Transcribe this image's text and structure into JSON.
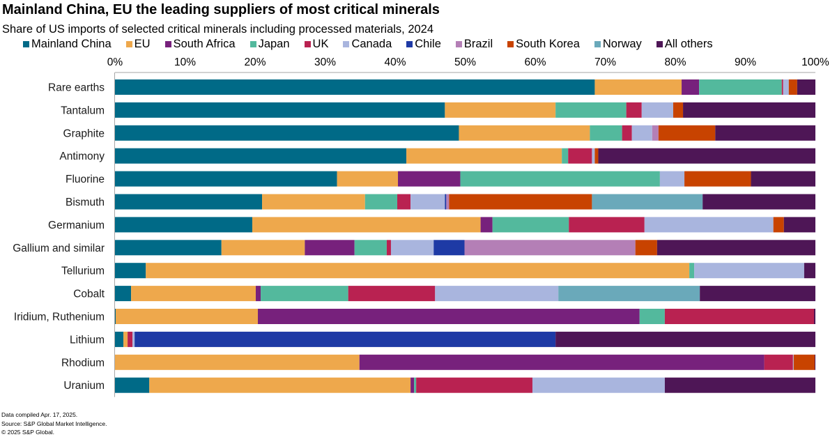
{
  "chart_data": {
    "type": "bar",
    "orientation": "horizontal",
    "stacked": true,
    "title": "Mainland China, EU the leading suppliers of most critical minerals",
    "subtitle": "Share of US imports of selected critical minerals including processed materials, 2024",
    "xlabel": "",
    "ylabel": "",
    "xlim": [
      0,
      100
    ],
    "x_ticks": [
      "0%",
      "10%",
      "20%",
      "30%",
      "40%",
      "50%",
      "60%",
      "70%",
      "80%",
      "90%",
      "100%"
    ],
    "x_axis_position": "top",
    "grid": false,
    "legend_position": "top",
    "categories": [
      "Rare earths",
      "Tantalum",
      "Graphite",
      "Antimony",
      "Fluorine",
      "Bismuth",
      "Germanium",
      "Gallium and similar",
      "Tellurium",
      "Cobalt",
      "Iridium, Ruthenium",
      "Lithium",
      "Rhodium",
      "Uranium"
    ],
    "series": [
      {
        "name": "Mainland China",
        "color": "#006a87",
        "values": [
          68.5,
          47.1,
          49.1,
          41.6,
          31.7,
          21.0,
          19.6,
          15.2,
          4.4,
          2.3,
          0.1,
          1.2,
          0.0,
          4.9
        ]
      },
      {
        "name": "EU",
        "color": "#eea84c",
        "values": [
          12.4,
          15.8,
          18.7,
          22.2,
          8.7,
          14.7,
          32.6,
          11.9,
          77.6,
          17.8,
          20.3,
          0.6,
          34.9,
          37.3
        ]
      },
      {
        "name": "South Africa",
        "color": "#77217c",
        "values": [
          2.5,
          0.0,
          0.0,
          0.0,
          8.9,
          0.0,
          1.7,
          7.1,
          0.0,
          0.7,
          54.5,
          0.0,
          57.8,
          0.5
        ]
      },
      {
        "name": "Japan",
        "color": "#53b99d",
        "values": [
          11.8,
          10.1,
          4.6,
          0.9,
          28.5,
          4.6,
          10.9,
          4.6,
          0.7,
          12.5,
          3.6,
          0.0,
          0.0,
          0.3
        ]
      },
      {
        "name": "UK",
        "color": "#b92251",
        "values": [
          0.2,
          2.2,
          1.4,
          3.4,
          0.0,
          1.9,
          10.8,
          0.6,
          0.0,
          12.4,
          21.3,
          0.7,
          4.1,
          16.6
        ]
      },
      {
        "name": "Canada",
        "color": "#a9b5de",
        "values": [
          0.8,
          4.5,
          2.9,
          0.4,
          3.5,
          4.9,
          18.4,
          6.1,
          15.7,
          17.6,
          0.0,
          0.3,
          0.1,
          18.9
        ]
      },
      {
        "name": "Chile",
        "color": "#1e3aa5",
        "values": [
          0.0,
          0.0,
          0.0,
          0.0,
          0.0,
          0.2,
          0.0,
          4.4,
          0.0,
          0.0,
          0.0,
          60.1,
          0.0,
          0.0
        ]
      },
      {
        "name": "Brazil",
        "color": "#b47fb6",
        "values": [
          0.0,
          0.0,
          0.9,
          0.0,
          0.0,
          0.4,
          0.0,
          24.4,
          0.0,
          0.0,
          0.0,
          0.0,
          0.0,
          0.0
        ]
      },
      {
        "name": "South Korea",
        "color": "#c84300",
        "values": [
          1.2,
          1.4,
          8.1,
          0.5,
          9.5,
          20.4,
          1.5,
          3.1,
          0.0,
          0.0,
          0.0,
          0.0,
          3.0,
          0.0
        ]
      },
      {
        "name": "Norway",
        "color": "#6aa9ba",
        "values": [
          0.0,
          0.0,
          0.0,
          0.0,
          0.0,
          15.8,
          0.0,
          0.0,
          0.0,
          20.2,
          0.0,
          0.0,
          0.0,
          0.0
        ]
      },
      {
        "name": "All others",
        "color": "#4e1656",
        "values": [
          2.6,
          18.9,
          14.3,
          31.0,
          9.2,
          16.1,
          4.5,
          22.6,
          1.6,
          16.5,
          0.2,
          37.1,
          0.1,
          21.5
        ]
      }
    ]
  },
  "footer": {
    "line1": "Data compiled Apr. 17, 2025.",
    "line2": "Source: S&P Global Market Intelligence.",
    "line3": "© 2025 S&P Global."
  }
}
